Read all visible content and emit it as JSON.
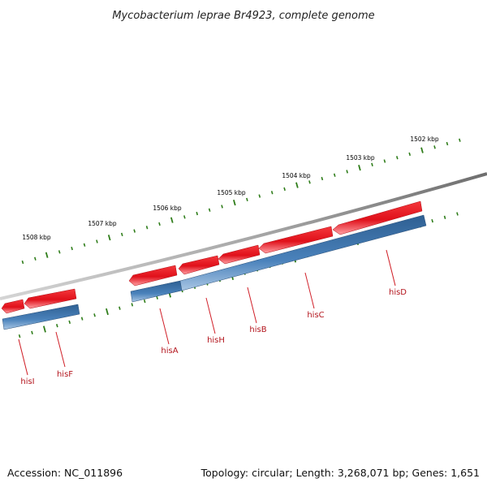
{
  "title": "Mycobacterium leprae Br4923, complete genome",
  "footer": {
    "accession": "Accession: NC_011896",
    "summary": "Topology: circular; Length: 3,268,071 bp; Genes: 1,651"
  },
  "colors": {
    "backbone": "#8a8a8a",
    "forward_gene": "#e8141c",
    "reverse_gene": "#3d75ad",
    "ticks": "#2f7d1a",
    "gene_label": "#b3141c"
  },
  "tick_labels": [
    "1502 kbp",
    "1503 kbp",
    "1504 kbp",
    "1505 kbp",
    "1506 kbp",
    "1507 kbp",
    "1508 kbp"
  ],
  "genes": [
    {
      "name": "hisI"
    },
    {
      "name": "hisF"
    },
    {
      "name": "hisA"
    },
    {
      "name": "hisH"
    },
    {
      "name": "hisB"
    },
    {
      "name": "hisC"
    },
    {
      "name": "hisD"
    }
  ]
}
